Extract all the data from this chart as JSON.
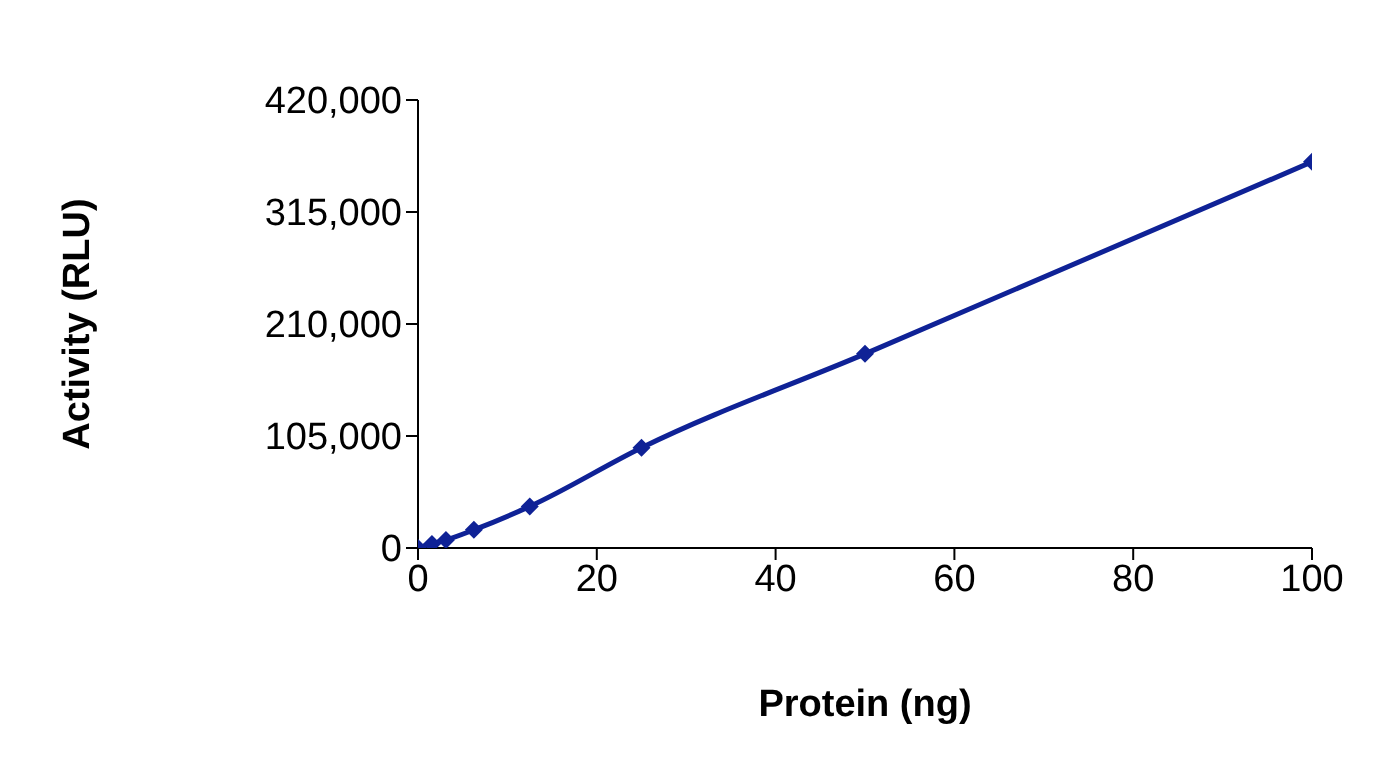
{
  "chart_data": {
    "type": "line",
    "xlabel": "Protein (ng)",
    "ylabel": "Activity (RLU)",
    "x": [
      0,
      1.56,
      3.125,
      6.25,
      12.5,
      25,
      50,
      100
    ],
    "series": [
      {
        "color": "#0f2296",
        "values": [
          0,
          3800,
          7500,
          17000,
          39000,
          94000,
          182000,
          362000
        ]
      }
    ],
    "xlim": [
      0,
      100
    ],
    "xticks": [
      0,
      20,
      40,
      60,
      80,
      100
    ],
    "ylim": [
      0,
      420000
    ],
    "yticks": [
      {
        "value": 0,
        "label": "0"
      },
      {
        "value": 105000,
        "label": "105,000"
      },
      {
        "value": 210000,
        "label": "210,000"
      },
      {
        "value": 315000,
        "label": "315,000"
      },
      {
        "value": 420000,
        "label": "420,000"
      }
    ],
    "marker": "diamond"
  }
}
